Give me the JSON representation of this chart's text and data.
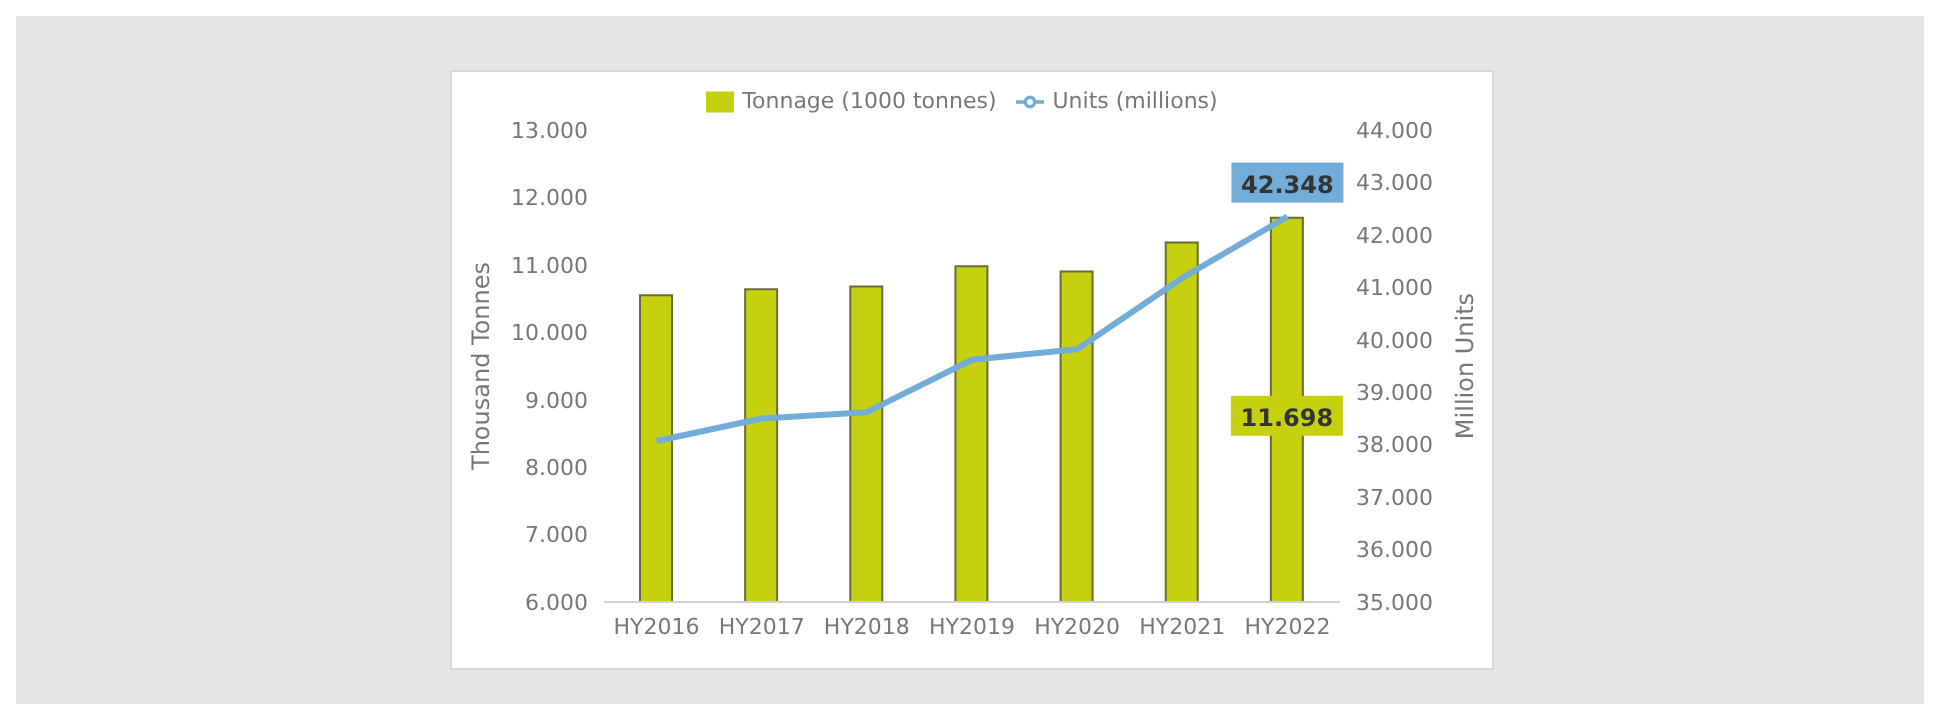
{
  "chart_data": {
    "type": "bar",
    "categories": [
      "HY2016",
      "HY2017",
      "HY2018",
      "HY2019",
      "HY2020",
      "HY2021",
      "HY2022"
    ],
    "series": [
      {
        "name": "Tonnage (1000 tonnes)",
        "color": "#c5d10f",
        "values": [
          10.55,
          10.64,
          10.68,
          10.98,
          10.9,
          11.33,
          11.698
        ],
        "value_labels": [
          null,
          null,
          null,
          null,
          null,
          null,
          "11.698"
        ]
      },
      {
        "name": "Units (millions)",
        "type": "line",
        "axis": "y2",
        "color": "#72acd8",
        "values": [
          38.07,
          38.5,
          38.62,
          39.62,
          39.82,
          41.18,
          42.348
        ],
        "value_labels": [
          null,
          null,
          null,
          null,
          null,
          null,
          "42.348"
        ]
      }
    ],
    "ylabel": "Thousand Tonnes",
    "y2label": "Million Units",
    "ylim": [
      6,
      13
    ],
    "yticks": [
      {
        "value": 6,
        "label": "6.000"
      },
      {
        "value": 7,
        "label": "7.000"
      },
      {
        "value": 8,
        "label": "8.000"
      },
      {
        "value": 9,
        "label": "9.000"
      },
      {
        "value": 10,
        "label": "10.000"
      },
      {
        "value": 11,
        "label": "11.000"
      },
      {
        "value": 12,
        "label": "12.000"
      },
      {
        "value": 13,
        "label": "13.000"
      }
    ],
    "y2lim": [
      35,
      44
    ],
    "y2ticks": [
      {
        "value": 35,
        "label": "35.000"
      },
      {
        "value": 36,
        "label": "36.000"
      },
      {
        "value": 37,
        "label": "37.000"
      },
      {
        "value": 38,
        "label": "38.000"
      },
      {
        "value": 39,
        "label": "39.000"
      },
      {
        "value": 40,
        "label": "40.000"
      },
      {
        "value": 41,
        "label": "41.000"
      },
      {
        "value": 42,
        "label": "42.000"
      },
      {
        "value": 43,
        "label": "43.000"
      },
      {
        "value": 44,
        "label": "44.000"
      }
    ],
    "grid": false,
    "legend": "top",
    "marker": "none"
  }
}
